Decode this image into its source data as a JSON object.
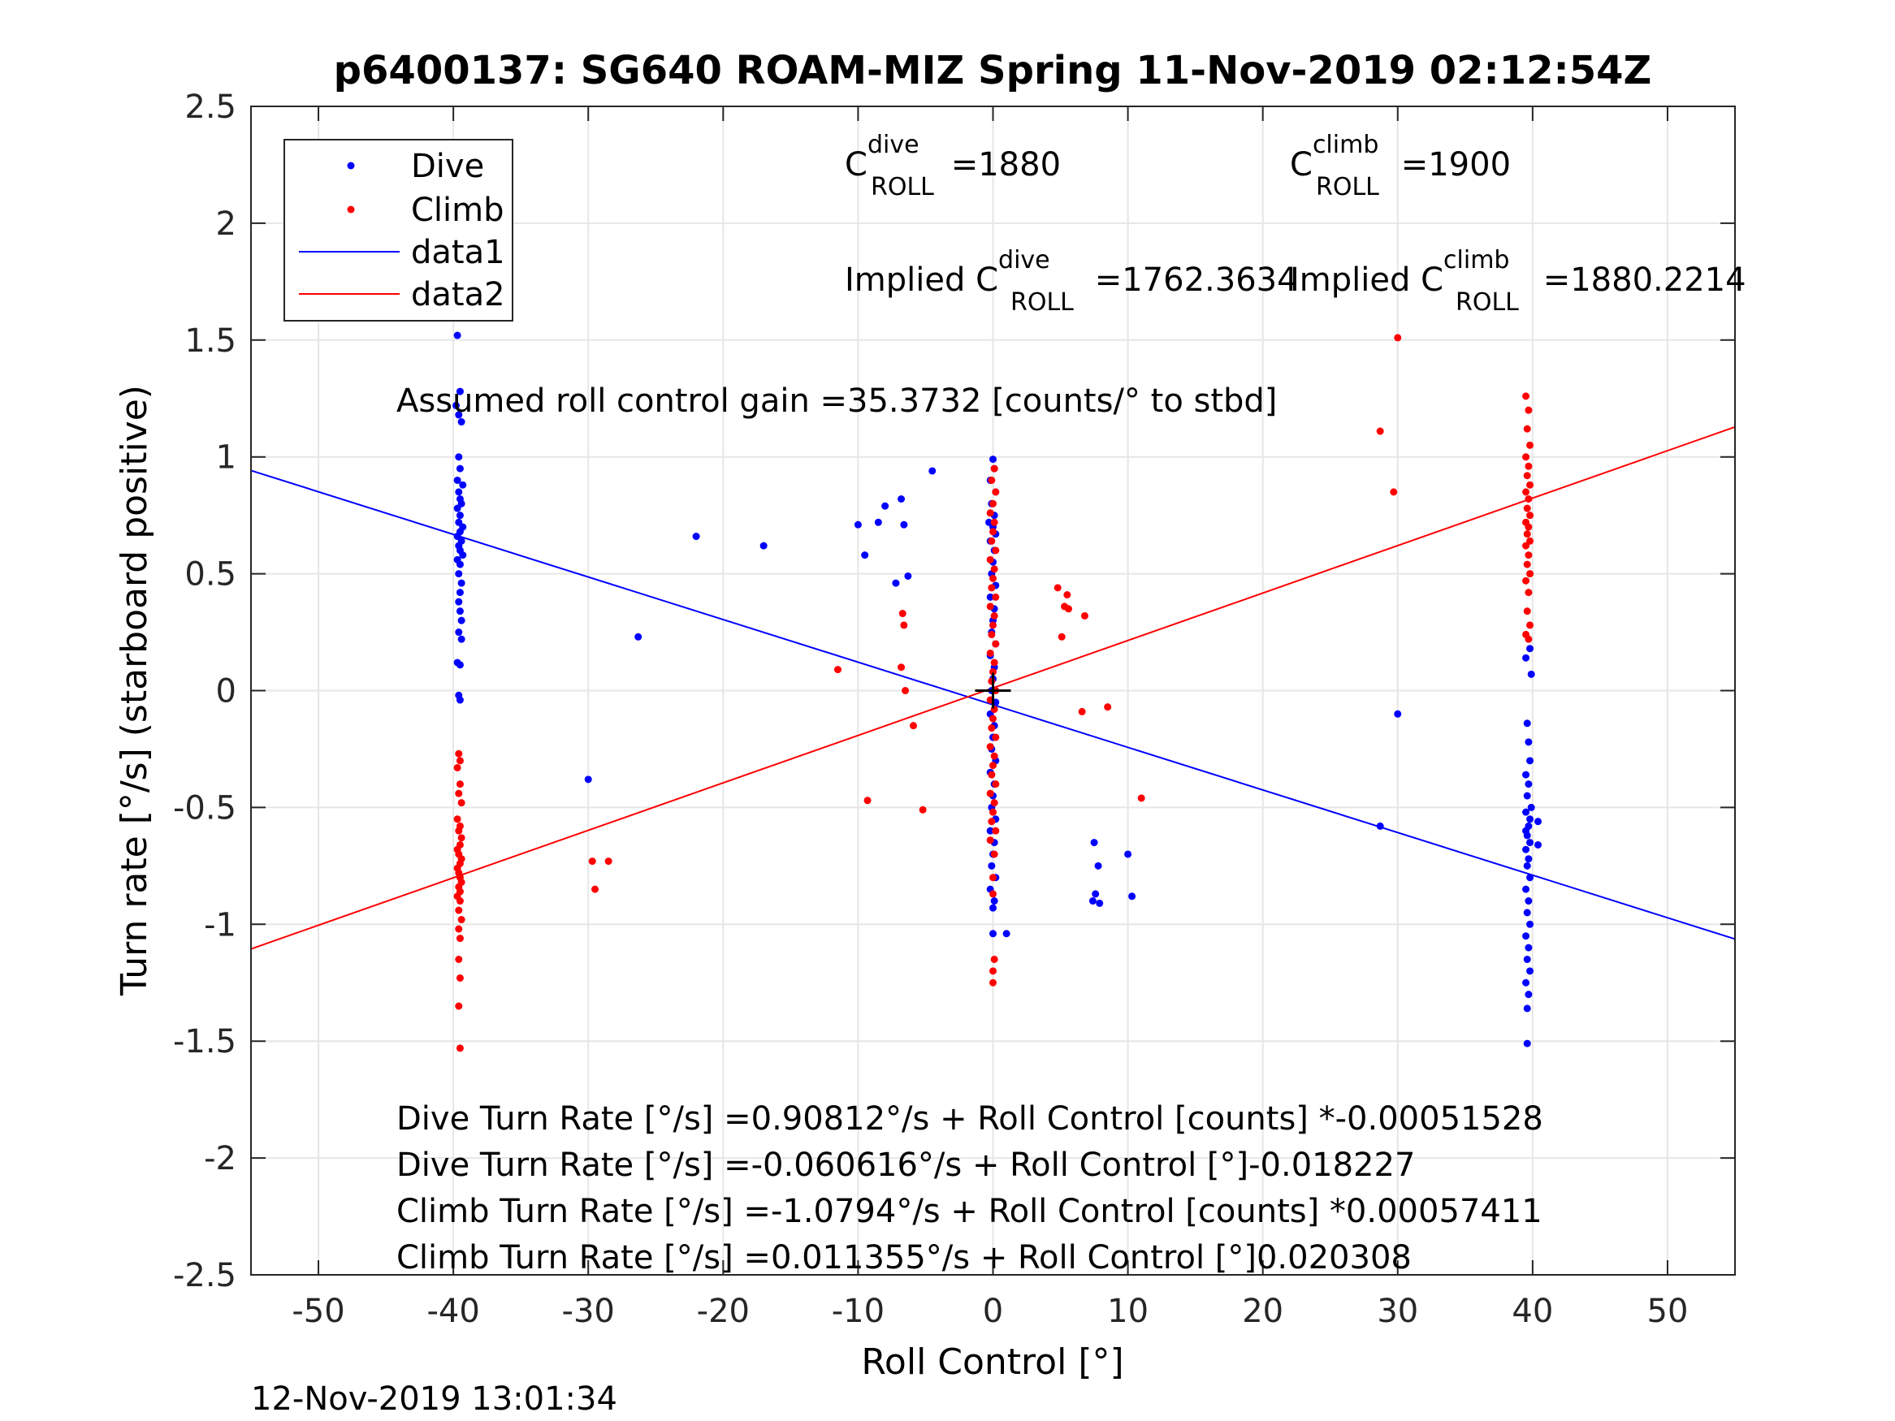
{
  "chart_data": {
    "type": "scatter",
    "title": "p6400137: SG640 ROAM-MIZ Spring 11-Nov-2019 02:12:54Z",
    "xlabel": "Roll Control [°]",
    "ylabel": "Turn rate [°/s] (starboard positive)",
    "xlim": [
      -55,
      55
    ],
    "ylim": [
      -2.5,
      2.5
    ],
    "xticks": [
      -50,
      -40,
      -30,
      -20,
      -10,
      0,
      10,
      20,
      30,
      40,
      50
    ],
    "yticks": [
      -2.5,
      -2,
      -1.5,
      -1,
      -0.5,
      0,
      0.5,
      1,
      1.5,
      2,
      2.5
    ],
    "xtick_labels": [
      "-50",
      "-40",
      "-30",
      "-20",
      "-10",
      "0",
      "10",
      "20",
      "30",
      "40",
      "50"
    ],
    "ytick_labels": [
      "-2.5",
      "-2",
      "-1.5",
      "-1",
      "-0.5",
      "0",
      "0.5",
      "1",
      "1.5",
      "2",
      "2.5"
    ],
    "grid": true,
    "legend_position": "top-left",
    "legend": [
      "Dive",
      "Climb",
      "data1",
      "data2"
    ],
    "colors": {
      "dive": "#0000ff",
      "climb": "#ff0000",
      "grid": "#e6e6e6",
      "axis": "#262626"
    },
    "series": [
      {
        "name": "Dive",
        "style": "points",
        "color": "#0000ff",
        "points": [
          [
            -39.7,
            1.52
          ],
          [
            -39.5,
            1.28
          ],
          [
            -39.8,
            1.22
          ],
          [
            -39.6,
            1.18
          ],
          [
            -39.4,
            1.15
          ],
          [
            -39.6,
            1.0
          ],
          [
            -39.5,
            0.95
          ],
          [
            -39.7,
            0.9
          ],
          [
            -39.3,
            0.88
          ],
          [
            -39.6,
            0.85
          ],
          [
            -39.5,
            0.82
          ],
          [
            -39.4,
            0.8
          ],
          [
            -39.7,
            0.78
          ],
          [
            -39.5,
            0.75
          ],
          [
            -39.6,
            0.72
          ],
          [
            -39.3,
            0.7
          ],
          [
            -39.5,
            0.68
          ],
          [
            -39.7,
            0.66
          ],
          [
            -39.4,
            0.64
          ],
          [
            -39.6,
            0.62
          ],
          [
            -39.5,
            0.6
          ],
          [
            -39.3,
            0.58
          ],
          [
            -39.7,
            0.56
          ],
          [
            -39.5,
            0.54
          ],
          [
            -39.6,
            0.5
          ],
          [
            -39.4,
            0.46
          ],
          [
            -39.5,
            0.42
          ],
          [
            -39.6,
            0.38
          ],
          [
            -39.5,
            0.34
          ],
          [
            -39.4,
            0.3
          ],
          [
            -39.6,
            0.25
          ],
          [
            -39.4,
            0.22
          ],
          [
            -39.7,
            0.12
          ],
          [
            -39.5,
            0.11
          ],
          [
            -39.6,
            -0.02
          ],
          [
            -39.5,
            -0.04
          ],
          [
            -26.3,
            0.23
          ],
          [
            -22.0,
            0.66
          ],
          [
            -17.0,
            0.62
          ],
          [
            -30.0,
            -0.38
          ],
          [
            -10.0,
            0.71
          ],
          [
            -8.5,
            0.72
          ],
          [
            -8.0,
            0.79
          ],
          [
            -6.8,
            0.82
          ],
          [
            -4.5,
            0.94
          ],
          [
            -6.6,
            0.71
          ],
          [
            -9.5,
            0.58
          ],
          [
            -7.2,
            0.46
          ],
          [
            -6.3,
            0.49
          ],
          [
            0.0,
            0.99
          ],
          [
            0.1,
            0.95
          ],
          [
            -0.2,
            0.9
          ],
          [
            0.2,
            0.85
          ],
          [
            -0.1,
            0.8
          ],
          [
            0.1,
            0.75
          ],
          [
            -0.3,
            0.72
          ],
          [
            0.0,
            0.7
          ],
          [
            0.2,
            0.67
          ],
          [
            -0.2,
            0.64
          ],
          [
            0.1,
            0.6
          ],
          [
            0.0,
            0.55
          ],
          [
            -0.1,
            0.5
          ],
          [
            0.2,
            0.45
          ],
          [
            -0.2,
            0.4
          ],
          [
            0.1,
            0.35
          ],
          [
            0.0,
            0.3
          ],
          [
            -0.1,
            0.25
          ],
          [
            0.2,
            0.2
          ],
          [
            -0.2,
            0.15
          ],
          [
            0.1,
            0.1
          ],
          [
            0.0,
            0.05
          ],
          [
            -0.1,
            0.0
          ],
          [
            0.2,
            -0.05
          ],
          [
            -0.2,
            -0.1
          ],
          [
            0.1,
            -0.15
          ],
          [
            0.0,
            -0.2
          ],
          [
            -0.1,
            -0.25
          ],
          [
            0.2,
            -0.3
          ],
          [
            -0.2,
            -0.35
          ],
          [
            0.1,
            -0.4
          ],
          [
            0.0,
            -0.45
          ],
          [
            -0.1,
            -0.5
          ],
          [
            0.2,
            -0.55
          ],
          [
            -0.2,
            -0.6
          ],
          [
            0.1,
            -0.65
          ],
          [
            0.0,
            -0.7
          ],
          [
            -0.1,
            -0.75
          ],
          [
            0.2,
            -0.8
          ],
          [
            -0.2,
            -0.85
          ],
          [
            0.1,
            -0.9
          ],
          [
            0.0,
            -0.93
          ],
          [
            0.0,
            -1.04
          ],
          [
            1.0,
            -1.04
          ],
          [
            7.5,
            -0.65
          ],
          [
            7.8,
            -0.75
          ],
          [
            7.4,
            -0.9
          ],
          [
            7.6,
            -0.87
          ],
          [
            7.9,
            -0.91
          ],
          [
            10.0,
            -0.7
          ],
          [
            10.3,
            -0.88
          ],
          [
            28.7,
            -0.58
          ],
          [
            30.0,
            -0.1
          ],
          [
            39.8,
            0.18
          ],
          [
            39.5,
            0.14
          ],
          [
            39.9,
            0.07
          ],
          [
            39.6,
            -0.14
          ],
          [
            39.7,
            -0.22
          ],
          [
            39.8,
            -0.3
          ],
          [
            39.5,
            -0.36
          ],
          [
            39.7,
            -0.4
          ],
          [
            39.6,
            -0.45
          ],
          [
            39.9,
            -0.5
          ],
          [
            39.5,
            -0.52
          ],
          [
            39.8,
            -0.55
          ],
          [
            39.7,
            -0.58
          ],
          [
            39.5,
            -0.6
          ],
          [
            39.6,
            -0.62
          ],
          [
            39.8,
            -0.65
          ],
          [
            39.5,
            -0.68
          ],
          [
            39.7,
            -0.72
          ],
          [
            39.6,
            -0.75
          ],
          [
            39.8,
            -0.8
          ],
          [
            39.5,
            -0.85
          ],
          [
            39.7,
            -0.9
          ],
          [
            39.6,
            -0.95
          ],
          [
            39.8,
            -1.0
          ],
          [
            39.5,
            -1.05
          ],
          [
            39.7,
            -1.1
          ],
          [
            39.6,
            -1.15
          ],
          [
            39.8,
            -1.2
          ],
          [
            39.5,
            -1.25
          ],
          [
            39.7,
            -1.3
          ],
          [
            39.6,
            -1.36
          ],
          [
            39.6,
            -1.51
          ],
          [
            40.4,
            -0.56
          ],
          [
            40.4,
            -0.66
          ]
        ]
      },
      {
        "name": "Climb",
        "style": "points",
        "color": "#ff0000",
        "points": [
          [
            -39.6,
            -0.27
          ],
          [
            -39.5,
            -0.3
          ],
          [
            -39.7,
            -0.33
          ],
          [
            -39.5,
            -0.4
          ],
          [
            -39.6,
            -0.44
          ],
          [
            -39.4,
            -0.48
          ],
          [
            -39.7,
            -0.55
          ],
          [
            -39.5,
            -0.58
          ],
          [
            -39.6,
            -0.6
          ],
          [
            -39.4,
            -0.63
          ],
          [
            -39.5,
            -0.66
          ],
          [
            -39.7,
            -0.68
          ],
          [
            -39.6,
            -0.7
          ],
          [
            -39.4,
            -0.72
          ],
          [
            -39.5,
            -0.74
          ],
          [
            -39.7,
            -0.76
          ],
          [
            -39.6,
            -0.78
          ],
          [
            -39.5,
            -0.8
          ],
          [
            -39.4,
            -0.82
          ],
          [
            -39.6,
            -0.84
          ],
          [
            -39.5,
            -0.86
          ],
          [
            -39.7,
            -0.88
          ],
          [
            -39.5,
            -0.9
          ],
          [
            -39.6,
            -0.94
          ],
          [
            -39.4,
            -0.98
          ],
          [
            -39.6,
            -1.02
          ],
          [
            -39.5,
            -1.06
          ],
          [
            -39.6,
            -1.15
          ],
          [
            -39.5,
            -1.23
          ],
          [
            -39.6,
            -1.35
          ],
          [
            -39.5,
            -1.53
          ],
          [
            -29.7,
            -0.73
          ],
          [
            -28.5,
            -0.73
          ],
          [
            -29.5,
            -0.85
          ],
          [
            -11.5,
            0.09
          ],
          [
            -9.3,
            -0.47
          ],
          [
            -6.7,
            0.33
          ],
          [
            -6.6,
            0.28
          ],
          [
            -6.8,
            0.1
          ],
          [
            -6.5,
            0.0
          ],
          [
            -5.9,
            -0.15
          ],
          [
            -5.2,
            -0.51
          ],
          [
            0.1,
            0.95
          ],
          [
            -0.1,
            0.9
          ],
          [
            0.2,
            0.85
          ],
          [
            0.0,
            0.8
          ],
          [
            -0.2,
            0.76
          ],
          [
            0.1,
            0.72
          ],
          [
            0.0,
            0.68
          ],
          [
            -0.1,
            0.64
          ],
          [
            0.2,
            0.6
          ],
          [
            -0.2,
            0.56
          ],
          [
            0.1,
            0.52
          ],
          [
            0.0,
            0.48
          ],
          [
            -0.1,
            0.44
          ],
          [
            0.2,
            0.4
          ],
          [
            -0.2,
            0.36
          ],
          [
            0.1,
            0.32
          ],
          [
            0.0,
            0.28
          ],
          [
            -0.1,
            0.24
          ],
          [
            0.2,
            0.2
          ],
          [
            -0.2,
            0.16
          ],
          [
            0.1,
            0.12
          ],
          [
            0.0,
            0.08
          ],
          [
            -0.1,
            0.04
          ],
          [
            0.2,
            0.0
          ],
          [
            -0.2,
            -0.04
          ],
          [
            0.1,
            -0.08
          ],
          [
            0.0,
            -0.12
          ],
          [
            -0.1,
            -0.16
          ],
          [
            0.2,
            -0.2
          ],
          [
            -0.2,
            -0.24
          ],
          [
            0.1,
            -0.28
          ],
          [
            0.0,
            -0.32
          ],
          [
            -0.1,
            -0.36
          ],
          [
            0.2,
            -0.4
          ],
          [
            -0.2,
            -0.44
          ],
          [
            0.1,
            -0.48
          ],
          [
            0.0,
            -0.52
          ],
          [
            -0.1,
            -0.56
          ],
          [
            0.2,
            -0.6
          ],
          [
            -0.2,
            -0.64
          ],
          [
            0.1,
            -0.7
          ],
          [
            0.0,
            -0.8
          ],
          [
            0.0,
            -0.87
          ],
          [
            0.1,
            -1.15
          ],
          [
            0.0,
            -1.2
          ],
          [
            0.0,
            -1.25
          ],
          [
            4.8,
            0.44
          ],
          [
            5.5,
            0.41
          ],
          [
            5.3,
            0.36
          ],
          [
            5.6,
            0.35
          ],
          [
            5.1,
            0.23
          ],
          [
            6.8,
            0.32
          ],
          [
            6.6,
            -0.09
          ],
          [
            8.5,
            -0.07
          ],
          [
            11.0,
            -0.46
          ],
          [
            28.7,
            1.11
          ],
          [
            29.7,
            0.85
          ],
          [
            30.0,
            1.51
          ],
          [
            39.5,
            1.26
          ],
          [
            39.7,
            1.2
          ],
          [
            39.6,
            1.12
          ],
          [
            39.8,
            1.05
          ],
          [
            39.5,
            1.0
          ],
          [
            39.7,
            0.96
          ],
          [
            39.6,
            0.92
          ],
          [
            39.8,
            0.88
          ],
          [
            39.5,
            0.85
          ],
          [
            39.7,
            0.82
          ],
          [
            39.6,
            0.78
          ],
          [
            39.8,
            0.75
          ],
          [
            39.5,
            0.72
          ],
          [
            39.7,
            0.7
          ],
          [
            39.6,
            0.67
          ],
          [
            39.8,
            0.64
          ],
          [
            39.5,
            0.62
          ],
          [
            39.7,
            0.58
          ],
          [
            39.6,
            0.54
          ],
          [
            39.8,
            0.5
          ],
          [
            39.5,
            0.47
          ],
          [
            39.7,
            0.42
          ],
          [
            39.6,
            0.34
          ],
          [
            39.8,
            0.28
          ],
          [
            39.5,
            0.24
          ],
          [
            39.7,
            0.22
          ]
        ]
      },
      {
        "name": "data1",
        "style": "line",
        "color": "#0000ff",
        "intercept": -0.060616,
        "slope": -0.018227
      },
      {
        "name": "data2",
        "style": "line",
        "color": "#ff0000",
        "intercept": 0.011355,
        "slope": 0.020308
      }
    ],
    "crosshair": {
      "x": 0,
      "y": 0
    },
    "annotations": {
      "c_dive": {
        "base": "C",
        "sup": "dive",
        "sub": "ROLL",
        "value": " =1880"
      },
      "c_climb": {
        "base": "C",
        "sup": "climb",
        "sub": "ROLL",
        "value": " =1900"
      },
      "implied_dive": {
        "base": "Implied C",
        "sup": "dive",
        "sub": "ROLL",
        "value": " =1762.3634"
      },
      "implied_climb": {
        "base": "Implied C",
        "sup": "climb",
        "sub": "ROLL",
        "value": " =1880.2214"
      },
      "gain": "Assumed roll control gain =35.3732 [counts/° to stbd]",
      "eq1": "Dive Turn Rate [°/s] =0.90812°/s + Roll Control [counts] *-0.00051528",
      "eq2": "Dive Turn Rate [°/s] =-0.060616°/s + Roll Control [°]-0.018227",
      "eq3": "Climb Turn Rate [°/s] =-1.0794°/s + Roll Control [counts] *0.00057411",
      "eq4": "Climb Turn Rate [°/s] =0.011355°/s + Roll Control [°]0.020308"
    },
    "timestamp": "12-Nov-2019 13:01:34"
  }
}
